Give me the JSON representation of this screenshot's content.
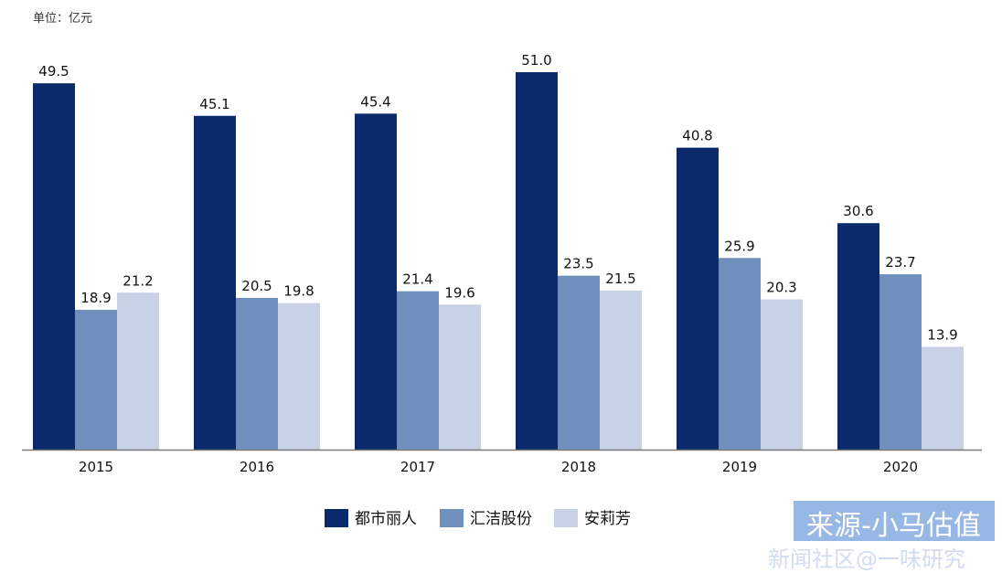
{
  "chart_data": {
    "type": "bar",
    "unit_label": "单位：亿元",
    "categories": [
      "2015",
      "2016",
      "2017",
      "2018",
      "2019",
      "2020"
    ],
    "series": [
      {
        "name": "都市丽人",
        "color": "#0b2a6b",
        "values": [
          49.5,
          45.1,
          45.4,
          51.0,
          40.8,
          30.6
        ]
      },
      {
        "name": "汇洁股份",
        "color": "#6f8fbd",
        "values": [
          18.9,
          20.5,
          21.4,
          23.5,
          25.9,
          23.7
        ]
      },
      {
        "name": "安莉芳",
        "color": "#c8d1e6",
        "values": [
          21.2,
          19.8,
          19.6,
          21.5,
          20.3,
          13.9
        ]
      }
    ],
    "ylim": [
      0,
      51
    ],
    "value_format": "0.0",
    "legend_position": "bottom-center",
    "grid": false
  },
  "watermark": {
    "main": "来源-小马估值",
    "sub": "新闻社区@一味研究"
  }
}
